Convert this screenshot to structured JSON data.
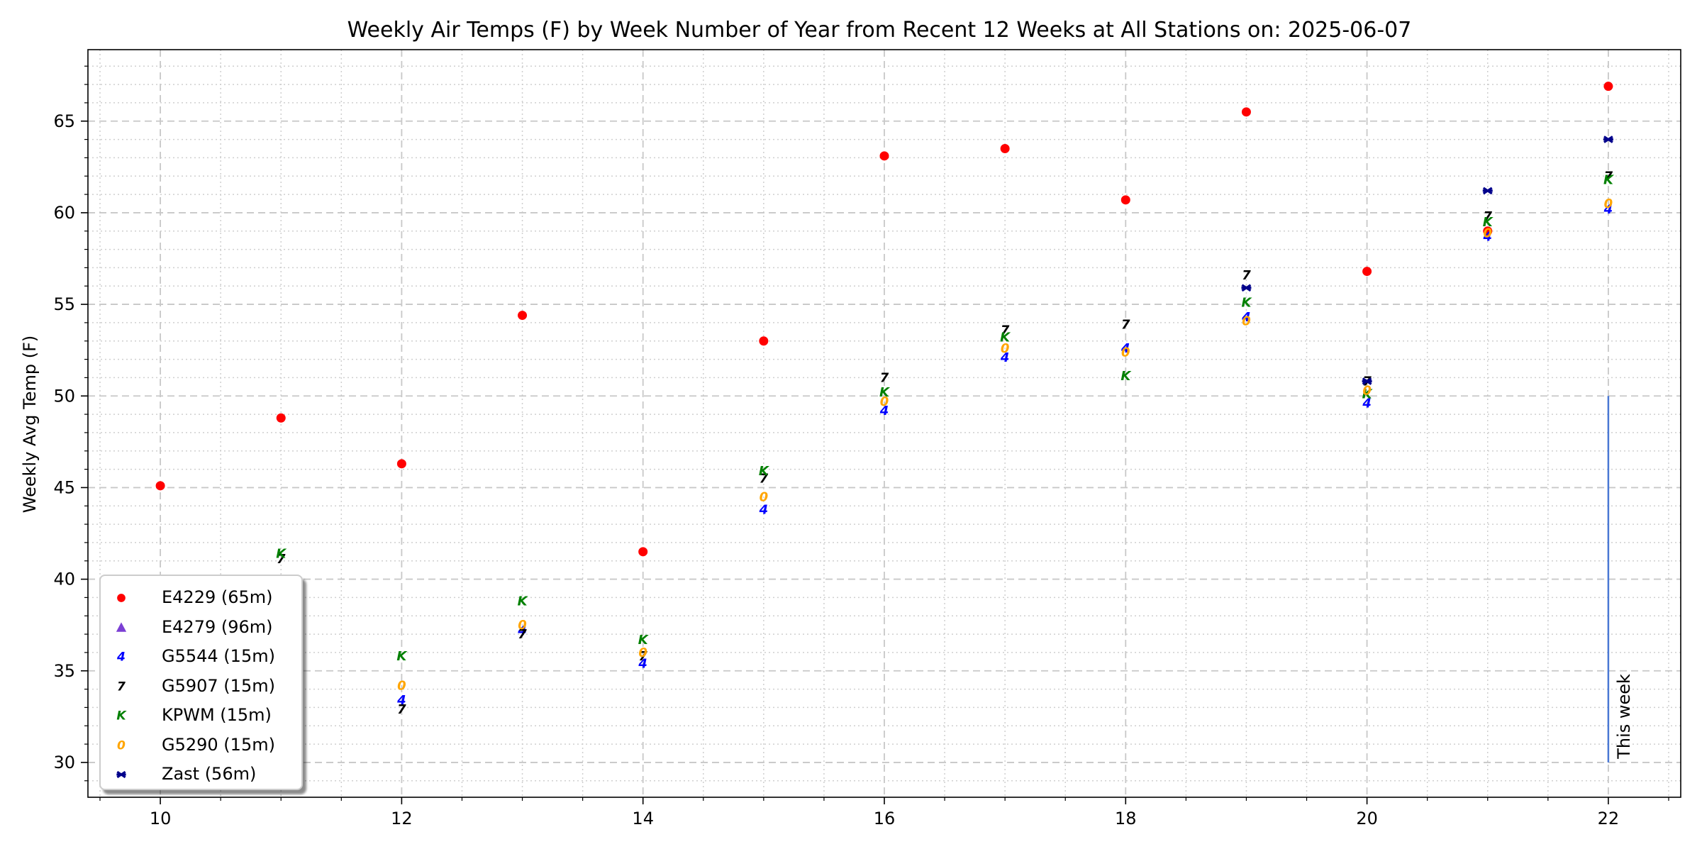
{
  "chart_data": {
    "type": "scatter",
    "title": "Weekly Air Temps (F) by Week Number of Year from Recent 12 Weeks at All Stations on: 2025-06-07",
    "xlabel": "",
    "ylabel": "Weekly Avg Temp (F)",
    "xlim": [
      9.4,
      22.6
    ],
    "ylim": [
      28.1,
      68.9
    ],
    "xticks": [
      10,
      12,
      14,
      16,
      18,
      20,
      22
    ],
    "yticks": [
      30,
      35,
      40,
      45,
      50,
      55,
      60,
      65
    ],
    "grid": true,
    "legend_position": "lower-left",
    "annotation": {
      "text": "This week",
      "x": 22,
      "y_range": [
        30,
        50
      ],
      "color": "#4a78d4"
    },
    "series": [
      {
        "name": "E4229 (65m)",
        "marker": "circle",
        "color": "#ff0000",
        "x": [
          10,
          11,
          12,
          13,
          14,
          15,
          16,
          17,
          18,
          19,
          20,
          21,
          22
        ],
        "y": [
          45.1,
          48.8,
          46.3,
          54.4,
          41.5,
          53.0,
          63.1,
          63.5,
          60.7,
          65.5,
          56.8,
          59.0,
          66.9
        ]
      },
      {
        "name": "E4279 (96m)",
        "marker": "triangle",
        "color": "#7b3fd4",
        "x": [],
        "y": []
      },
      {
        "name": "G5544 (15m)",
        "marker": "4",
        "color": "#0000ff",
        "x": [
          12,
          13,
          14,
          15,
          16,
          17,
          18,
          19,
          20,
          21,
          22
        ],
        "y": [
          33.4,
          37.2,
          35.4,
          43.8,
          49.2,
          52.1,
          52.6,
          54.3,
          49.6,
          58.7,
          60.2
        ]
      },
      {
        "name": "G5907 (15m)",
        "marker": "7",
        "color": "#000000",
        "x": [
          11,
          12,
          13,
          14,
          15,
          16,
          17,
          18,
          19,
          20,
          21,
          22
        ],
        "y": [
          41.1,
          32.9,
          37.0,
          35.8,
          45.5,
          51.0,
          53.6,
          53.9,
          56.6,
          50.8,
          59.8,
          62.0
        ]
      },
      {
        "name": "KPWM (15m)",
        "marker": "K",
        "color": "#008000",
        "x": [
          11,
          12,
          13,
          14,
          15,
          16,
          17,
          18,
          19,
          20,
          21,
          22
        ],
        "y": [
          41.4,
          35.8,
          38.8,
          36.7,
          45.9,
          50.2,
          53.2,
          51.1,
          55.1,
          50.1,
          59.5,
          61.8
        ]
      },
      {
        "name": "G5290 (15m)",
        "marker": "0",
        "color": "#ffa500",
        "x": [
          12,
          13,
          14,
          15,
          16,
          17,
          18,
          19,
          20,
          21,
          22
        ],
        "y": [
          34.2,
          37.5,
          36.0,
          44.5,
          49.7,
          52.6,
          52.4,
          54.1,
          50.3,
          58.9,
          60.5
        ]
      },
      {
        "name": "Zast (56m)",
        "marker": "x",
        "color": "#00008b",
        "x": [
          19,
          20,
          21,
          22
        ],
        "y": [
          55.9,
          50.8,
          61.2,
          64.0
        ]
      }
    ]
  }
}
